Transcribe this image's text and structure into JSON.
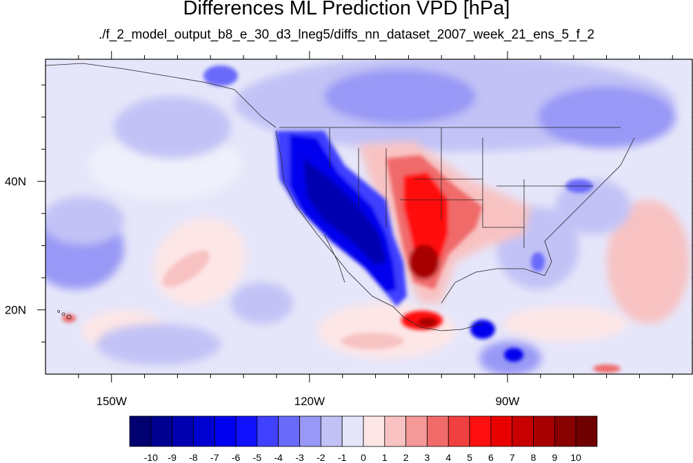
{
  "title": "Differences ML Prediction VPD [hPa]",
  "subtitle": "./f_2_model_output_b8_e_30_d3_lneg5/diffs_nn_dataset_2007_week_21_ens_5_f_2",
  "map": {
    "lon_range": [
      -160,
      -62
    ],
    "lat_range": [
      10,
      59
    ],
    "lon_ticks": [
      {
        "value": -150,
        "label": "150W"
      },
      {
        "value": -120,
        "label": "120W"
      },
      {
        "value": -90,
        "label": "90W"
      }
    ],
    "lat_ticks": [
      {
        "value": 40,
        "label": "40N"
      },
      {
        "value": 20,
        "label": "20N"
      }
    ]
  },
  "colorbar": {
    "labels": [
      "-10",
      "-9",
      "-8",
      "-7",
      "-6",
      "-5",
      "-4",
      "-3",
      "-2",
      "-1",
      "0",
      "1",
      "2",
      "3",
      "4",
      "5",
      "6",
      "7",
      "8",
      "9",
      "10"
    ],
    "colors": [
      "#000070",
      "#000090",
      "#0000b0",
      "#0000d0",
      "#0000ee",
      "#1010ff",
      "#4040ff",
      "#6a6afa",
      "#9898f6",
      "#c2c2f6",
      "#e6e6fa",
      "#fde6e6",
      "#f8c2c2",
      "#f49898",
      "#f06a6a",
      "#f04040",
      "#ff1010",
      "#e80000",
      "#c80000",
      "#a80000",
      "#880000",
      "#700000"
    ]
  },
  "color_scale": {
    "deep_blue": "#0000e0",
    "light_blue": "#c2c2f6",
    "neutral": "#e6e6fa",
    "light_red": "#fde6e6",
    "deep_red": "#c80000"
  }
}
